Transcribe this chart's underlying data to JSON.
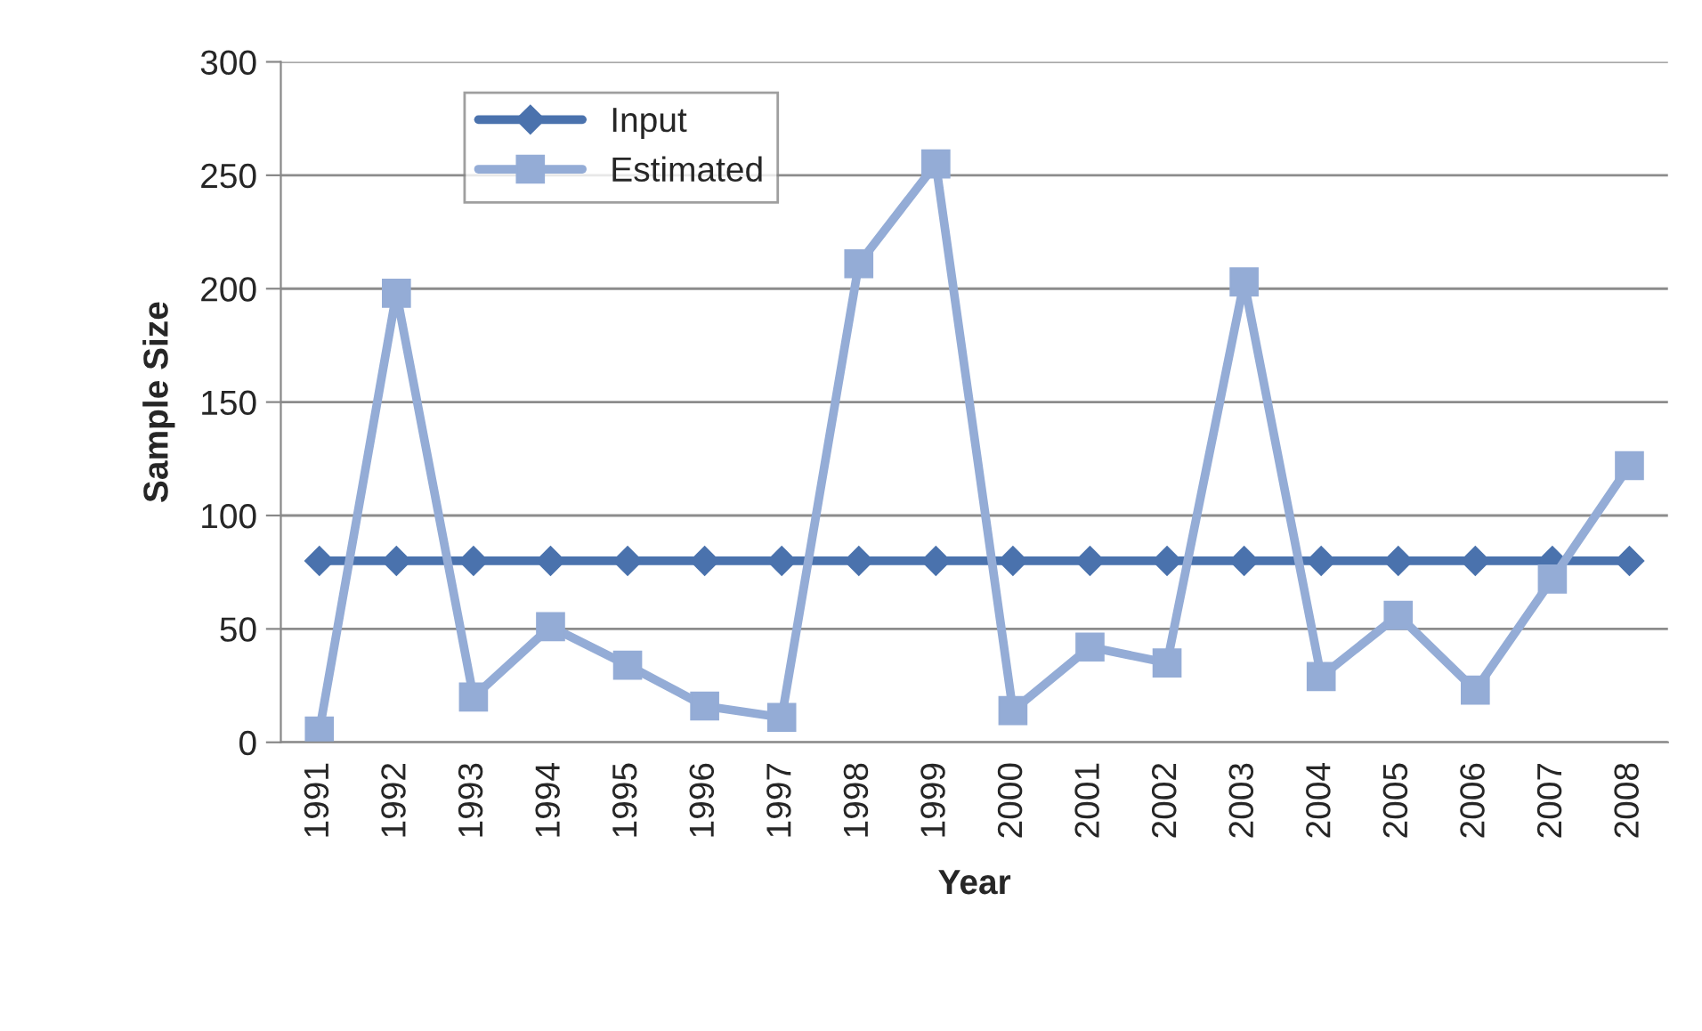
{
  "chart_data": {
    "type": "line",
    "xlabel": "Year",
    "ylabel": "Sample Size",
    "categories": [
      "1991",
      "1992",
      "1993",
      "1994",
      "1995",
      "1996",
      "1997",
      "1998",
      "1999",
      "2000",
      "2001",
      "2002",
      "2003",
      "2004",
      "2005",
      "2006",
      "2007",
      "2008"
    ],
    "series": [
      {
        "name": "Input",
        "color": "#4a72ad",
        "marker": "diamond",
        "values": [
          80,
          80,
          80,
          80,
          80,
          80,
          80,
          80,
          80,
          80,
          80,
          80,
          80,
          80,
          80,
          80,
          80,
          80
        ]
      },
      {
        "name": "Estimated",
        "color": "#94acd6",
        "marker": "square",
        "values": [
          5,
          198,
          20,
          51,
          34,
          16,
          11,
          211,
          255,
          14,
          42,
          35,
          203,
          29,
          56,
          23,
          72,
          122
        ]
      }
    ],
    "ylim": [
      0,
      300
    ],
    "yticks": [
      0,
      50,
      100,
      150,
      200,
      250,
      300
    ],
    "grid": "y",
    "legend": "top left",
    "line_style": "solid"
  }
}
